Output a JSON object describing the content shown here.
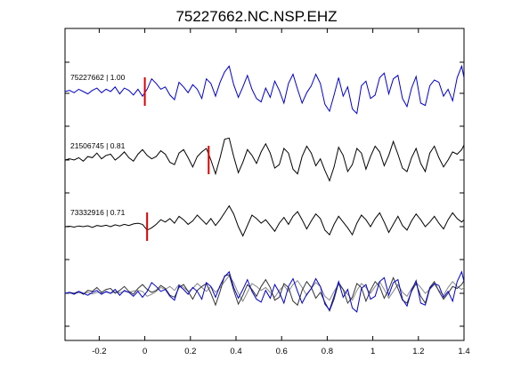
{
  "chart_data": {
    "type": "line",
    "title": "75227662.NC.NSP.EHZ",
    "xlabel": "",
    "ylabel": "",
    "xlim": [
      -0.35,
      1.4
    ],
    "xticks": [
      -0.2,
      0,
      0.2,
      0.4,
      0.6,
      0.8,
      1,
      1.2,
      1.4
    ],
    "xtick_labels": [
      "-0.2",
      "0",
      "0.2",
      "0.4",
      "0.6",
      "0.8",
      "1",
      "1.2",
      "1.4"
    ],
    "grid": false,
    "traces": [
      {
        "label": "75227662 | 1.00",
        "color": "#0000cc",
        "pick_time": 0.0,
        "x": [
          -0.35,
          -0.33,
          -0.31,
          -0.29,
          -0.27,
          -0.25,
          -0.23,
          -0.21,
          -0.19,
          -0.17,
          -0.15,
          -0.13,
          -0.11,
          -0.09,
          -0.07,
          -0.05,
          -0.03,
          -0.01,
          0.01,
          0.03,
          0.05,
          0.07,
          0.09,
          0.11,
          0.13,
          0.15,
          0.17,
          0.19,
          0.21,
          0.23,
          0.25,
          0.27,
          0.29,
          0.31,
          0.33,
          0.35,
          0.37,
          0.39,
          0.41,
          0.43,
          0.45,
          0.47,
          0.49,
          0.51,
          0.53,
          0.55,
          0.57,
          0.59,
          0.61,
          0.63,
          0.65,
          0.67,
          0.69,
          0.71,
          0.73,
          0.75,
          0.77,
          0.79,
          0.81,
          0.83,
          0.85,
          0.87,
          0.89,
          0.91,
          0.93,
          0.95,
          0.97,
          0.99,
          1.01,
          1.03,
          1.05,
          1.07,
          1.09,
          1.11,
          1.13,
          1.15,
          1.17,
          1.19,
          1.21,
          1.23,
          1.25,
          1.27,
          1.29,
          1.31,
          1.33,
          1.35,
          1.37,
          1.39,
          1.4
        ],
        "y": [
          0.0,
          0.05,
          -0.05,
          0.1,
          0.0,
          -0.1,
          0.05,
          0.15,
          -0.05,
          0.1,
          0.0,
          0.2,
          -0.1,
          0.15,
          0.05,
          -0.15,
          0.1,
          -0.2,
          0.1,
          0.55,
          0.35,
          0.1,
          0.2,
          -0.15,
          -0.35,
          0.4,
          0.2,
          -0.05,
          0.3,
          0.1,
          -0.3,
          0.55,
          0.35,
          -0.2,
          0.4,
          0.85,
          1.1,
          0.3,
          -0.25,
          0.2,
          0.7,
          0.1,
          -0.3,
          -0.45,
          0.15,
          -0.25,
          0.45,
          0.05,
          -0.5,
          0.35,
          0.75,
          0.1,
          -0.5,
          -0.05,
          0.25,
          0.75,
          0.35,
          -0.55,
          -0.85,
          -0.15,
          0.6,
          -0.2,
          0.2,
          -0.75,
          -0.95,
          0.25,
          0.45,
          -0.3,
          -0.15,
          0.6,
          0.8,
          -0.1,
          0.55,
          0.7,
          -0.3,
          -0.65,
          0.15,
          0.65,
          -0.5,
          -0.6,
          0.25,
          0.5,
          0.4,
          -0.2,
          0.1,
          -0.4,
          0.6,
          1.1,
          0.6
        ]
      },
      {
        "label": "21506745 | 0.81",
        "color": "#000000",
        "pick_time": 0.28,
        "x": [
          -0.35,
          -0.33,
          -0.31,
          -0.29,
          -0.27,
          -0.25,
          -0.23,
          -0.21,
          -0.19,
          -0.17,
          -0.15,
          -0.13,
          -0.11,
          -0.09,
          -0.07,
          -0.05,
          -0.03,
          -0.01,
          0.01,
          0.03,
          0.05,
          0.07,
          0.09,
          0.11,
          0.13,
          0.15,
          0.17,
          0.19,
          0.21,
          0.23,
          0.25,
          0.27,
          0.29,
          0.31,
          0.33,
          0.35,
          0.37,
          0.39,
          0.41,
          0.43,
          0.45,
          0.47,
          0.49,
          0.51,
          0.53,
          0.55,
          0.57,
          0.59,
          0.61,
          0.63,
          0.65,
          0.67,
          0.69,
          0.71,
          0.73,
          0.75,
          0.77,
          0.79,
          0.81,
          0.83,
          0.85,
          0.87,
          0.89,
          0.91,
          0.93,
          0.95,
          0.97,
          0.99,
          1.01,
          1.03,
          1.05,
          1.07,
          1.09,
          1.11,
          1.13,
          1.15,
          1.17,
          1.19,
          1.21,
          1.23,
          1.25,
          1.27,
          1.29,
          1.31,
          1.33,
          1.35,
          1.37,
          1.39,
          1.4
        ],
        "y": [
          0.0,
          0.05,
          0.0,
          0.1,
          -0.05,
          0.15,
          0.1,
          0.3,
          0.05,
          0.2,
          0.25,
          0.0,
          0.15,
          0.35,
          0.1,
          -0.05,
          0.25,
          0.45,
          0.2,
          0.05,
          0.15,
          0.4,
          0.25,
          -0.1,
          -0.2,
          0.3,
          0.45,
          0.1,
          -0.3,
          0.15,
          0.35,
          0.5,
          0.0,
          -0.6,
          0.1,
          0.9,
          0.95,
          0.15,
          -0.55,
          -0.1,
          0.45,
          0.2,
          -0.15,
          0.35,
          0.7,
          0.3,
          -0.35,
          -0.2,
          0.5,
          0.3,
          -0.4,
          -0.6,
          0.15,
          0.6,
          0.3,
          -0.25,
          0.05,
          -0.45,
          -0.9,
          -0.3,
          0.55,
          0.2,
          -0.5,
          -0.2,
          0.5,
          0.3,
          -0.4,
          0.15,
          0.6,
          0.35,
          -0.25,
          0.2,
          0.8,
          0.25,
          -0.35,
          -0.5,
          0.1,
          0.5,
          -0.15,
          -0.5,
          0.3,
          0.6,
          0.1,
          -0.3,
          0.0,
          0.35,
          0.25,
          0.45,
          0.65
        ]
      },
      {
        "label": "73332916 | 0.71",
        "color": "#000000",
        "pick_time": 0.01,
        "x": [
          -0.35,
          -0.33,
          -0.31,
          -0.29,
          -0.27,
          -0.25,
          -0.23,
          -0.21,
          -0.19,
          -0.17,
          -0.15,
          -0.13,
          -0.11,
          -0.09,
          -0.07,
          -0.05,
          -0.03,
          -0.01,
          0.01,
          0.03,
          0.05,
          0.07,
          0.09,
          0.11,
          0.13,
          0.15,
          0.17,
          0.19,
          0.21,
          0.23,
          0.25,
          0.27,
          0.29,
          0.31,
          0.33,
          0.35,
          0.37,
          0.39,
          0.41,
          0.43,
          0.45,
          0.47,
          0.49,
          0.51,
          0.53,
          0.55,
          0.57,
          0.59,
          0.61,
          0.63,
          0.65,
          0.67,
          0.69,
          0.71,
          0.73,
          0.75,
          0.77,
          0.79,
          0.81,
          0.83,
          0.85,
          0.87,
          0.89,
          0.91,
          0.93,
          0.95,
          0.97,
          0.99,
          1.01,
          1.03,
          1.05,
          1.07,
          1.09,
          1.11,
          1.13,
          1.15,
          1.17,
          1.19,
          1.21,
          1.23,
          1.25,
          1.27,
          1.29,
          1.31,
          1.33,
          1.35,
          1.37,
          1.39,
          1.4
        ],
        "y": [
          0.0,
          0.02,
          -0.02,
          0.03,
          0.0,
          0.04,
          -0.03,
          0.05,
          0.02,
          0.06,
          0.0,
          0.08,
          0.03,
          0.1,
          0.05,
          0.12,
          0.15,
          0.1,
          -0.15,
          -0.05,
          0.1,
          0.3,
          0.2,
          0.35,
          0.15,
          0.45,
          0.3,
          0.1,
          0.25,
          0.5,
          0.3,
          0.1,
          0.35,
          0.05,
          0.3,
          0.6,
          0.9,
          0.55,
          0.0,
          -0.4,
          0.05,
          0.5,
          0.35,
          0.15,
          0.3,
          0.05,
          -0.2,
          0.15,
          0.4,
          0.1,
          0.45,
          0.65,
          0.3,
          -0.1,
          0.25,
          0.55,
          0.35,
          -0.15,
          -0.35,
          0.1,
          0.45,
          0.2,
          -0.05,
          -0.35,
          0.15,
          0.5,
          0.3,
          0.0,
          0.35,
          0.6,
          0.2,
          -0.25,
          0.1,
          0.45,
          0.05,
          -0.15,
          0.25,
          0.55,
          0.3,
          0.0,
          0.2,
          0.45,
          0.15,
          -0.1,
          0.3,
          0.6,
          0.35,
          0.2,
          0.3
        ]
      }
    ]
  }
}
